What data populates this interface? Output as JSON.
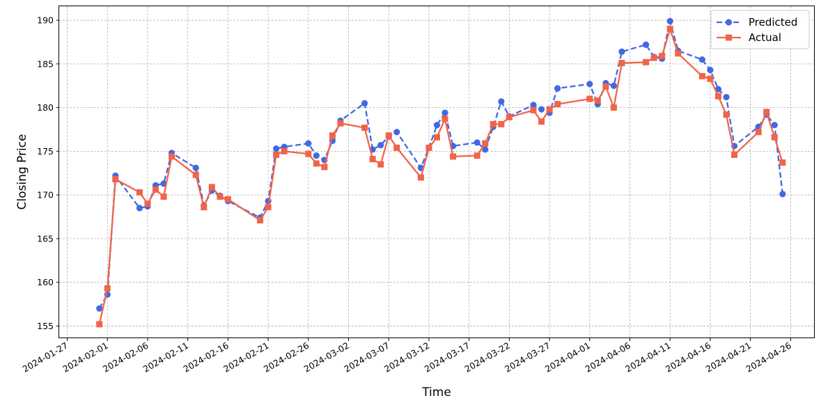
{
  "chart_data": {
    "type": "line",
    "xlabel": "Time",
    "ylabel": "Closing Price",
    "x_axis_type": "date",
    "xlim": [
      "2024-01-26",
      "2024-04-29"
    ],
    "ylim": [
      153.6,
      191.6
    ],
    "x_tick_labels": [
      "2024-01-27",
      "2024-02-01",
      "2024-02-06",
      "2024-02-11",
      "2024-02-16",
      "2024-02-21",
      "2024-02-26",
      "2024-03-02",
      "2024-03-07",
      "2024-03-12",
      "2024-03-17",
      "2024-03-22",
      "2024-03-27",
      "2024-04-01",
      "2024-04-06",
      "2024-04-11",
      "2024-04-16",
      "2024-04-21",
      "2024-04-26"
    ],
    "y_ticks": [
      155,
      160,
      165,
      170,
      175,
      180,
      185,
      190
    ],
    "grid": true,
    "legend_position": "top-right",
    "series": [
      {
        "name": "Predicted",
        "color": "#4169E1",
        "line_style": "dashed",
        "marker": "circle",
        "points": [
          [
            "2024-01-31",
            157.0
          ],
          [
            "2024-02-01",
            158.6
          ],
          [
            "2024-02-02",
            172.2
          ],
          [
            "2024-02-05",
            168.5
          ],
          [
            "2024-02-06",
            168.7
          ],
          [
            "2024-02-07",
            171.1
          ],
          [
            "2024-02-08",
            171.3
          ],
          [
            "2024-02-09",
            174.8
          ],
          [
            "2024-02-12",
            173.1
          ],
          [
            "2024-02-13",
            168.8
          ],
          [
            "2024-02-14",
            170.5
          ],
          [
            "2024-02-15",
            169.9
          ],
          [
            "2024-02-16",
            169.3
          ],
          [
            "2024-02-20",
            167.4
          ],
          [
            "2024-02-21",
            169.3
          ],
          [
            "2024-02-22",
            175.3
          ],
          [
            "2024-02-23",
            175.5
          ],
          [
            "2024-02-26",
            175.9
          ],
          [
            "2024-02-27",
            174.5
          ],
          [
            "2024-02-28",
            174.0
          ],
          [
            "2024-02-29",
            176.2
          ],
          [
            "2024-03-01",
            178.5
          ],
          [
            "2024-03-04",
            180.5
          ],
          [
            "2024-03-05",
            175.2
          ],
          [
            "2024-03-06",
            175.7
          ],
          [
            "2024-03-07",
            176.7
          ],
          [
            "2024-03-08",
            177.2
          ],
          [
            "2024-03-11",
            173.1
          ],
          [
            "2024-03-12",
            175.4
          ],
          [
            "2024-03-13",
            178.0
          ],
          [
            "2024-03-14",
            179.4
          ],
          [
            "2024-03-15",
            175.6
          ],
          [
            "2024-03-18",
            176.0
          ],
          [
            "2024-03-19",
            175.2
          ],
          [
            "2024-03-20",
            177.8
          ],
          [
            "2024-03-21",
            180.7
          ],
          [
            "2024-03-22",
            179.0
          ],
          [
            "2024-03-25",
            180.3
          ],
          [
            "2024-03-26",
            179.8
          ],
          [
            "2024-03-27",
            179.4
          ],
          [
            "2024-03-28",
            182.2
          ],
          [
            "2024-04-01",
            182.7
          ],
          [
            "2024-04-02",
            180.4
          ],
          [
            "2024-04-03",
            182.8
          ],
          [
            "2024-04-04",
            182.5
          ],
          [
            "2024-04-05",
            186.4
          ],
          [
            "2024-04-08",
            187.2
          ],
          [
            "2024-04-09",
            185.8
          ],
          [
            "2024-04-10",
            185.6
          ],
          [
            "2024-04-11",
            189.9
          ],
          [
            "2024-04-12",
            186.5
          ],
          [
            "2024-04-15",
            185.5
          ],
          [
            "2024-04-16",
            184.3
          ],
          [
            "2024-04-17",
            182.1
          ],
          [
            "2024-04-18",
            181.2
          ],
          [
            "2024-04-19",
            175.6
          ],
          [
            "2024-04-22",
            177.8
          ],
          [
            "2024-04-23",
            179.2
          ],
          [
            "2024-04-24",
            178.0
          ],
          [
            "2024-04-25",
            170.1
          ]
        ]
      },
      {
        "name": "Actual",
        "color": "#F0644A",
        "line_style": "solid",
        "marker": "square",
        "points": [
          [
            "2024-01-31",
            155.2
          ],
          [
            "2024-02-01",
            159.3
          ],
          [
            "2024-02-02",
            171.8
          ],
          [
            "2024-02-05",
            170.3
          ],
          [
            "2024-02-06",
            169.0
          ],
          [
            "2024-02-07",
            170.6
          ],
          [
            "2024-02-08",
            169.8
          ],
          [
            "2024-02-09",
            174.4
          ],
          [
            "2024-02-12",
            172.3
          ],
          [
            "2024-02-13",
            168.6
          ],
          [
            "2024-02-14",
            170.9
          ],
          [
            "2024-02-15",
            169.8
          ],
          [
            "2024-02-16",
            169.5
          ],
          [
            "2024-02-20",
            167.1
          ],
          [
            "2024-02-21",
            168.6
          ],
          [
            "2024-02-22",
            174.6
          ],
          [
            "2024-02-23",
            175.0
          ],
          [
            "2024-02-26",
            174.7
          ],
          [
            "2024-02-27",
            173.6
          ],
          [
            "2024-02-28",
            173.2
          ],
          [
            "2024-02-29",
            176.8
          ],
          [
            "2024-03-01",
            178.2
          ],
          [
            "2024-03-04",
            177.7
          ],
          [
            "2024-03-05",
            174.1
          ],
          [
            "2024-03-06",
            173.5
          ],
          [
            "2024-03-07",
            176.8
          ],
          [
            "2024-03-08",
            175.4
          ],
          [
            "2024-03-11",
            172.0
          ],
          [
            "2024-03-12",
            175.4
          ],
          [
            "2024-03-13",
            176.6
          ],
          [
            "2024-03-14",
            178.7
          ],
          [
            "2024-03-15",
            174.4
          ],
          [
            "2024-03-18",
            174.5
          ],
          [
            "2024-03-19",
            175.9
          ],
          [
            "2024-03-20",
            178.1
          ],
          [
            "2024-03-21",
            178.1
          ],
          [
            "2024-03-22",
            178.9
          ],
          [
            "2024-03-25",
            179.7
          ],
          [
            "2024-03-26",
            178.4
          ],
          [
            "2024-03-27",
            179.8
          ],
          [
            "2024-03-28",
            180.4
          ],
          [
            "2024-04-01",
            181.0
          ],
          [
            "2024-04-02",
            180.8
          ],
          [
            "2024-04-03",
            182.4
          ],
          [
            "2024-04-04",
            180.0
          ],
          [
            "2024-04-05",
            185.1
          ],
          [
            "2024-04-08",
            185.2
          ],
          [
            "2024-04-09",
            185.7
          ],
          [
            "2024-04-10",
            185.9
          ],
          [
            "2024-04-11",
            189.0
          ],
          [
            "2024-04-12",
            186.2
          ],
          [
            "2024-04-15",
            183.6
          ],
          [
            "2024-04-16",
            183.3
          ],
          [
            "2024-04-17",
            181.3
          ],
          [
            "2024-04-18",
            179.2
          ],
          [
            "2024-04-19",
            174.6
          ],
          [
            "2024-04-22",
            177.2
          ],
          [
            "2024-04-23",
            179.5
          ],
          [
            "2024-04-24",
            176.6
          ],
          [
            "2024-04-25",
            173.7
          ]
        ]
      }
    ]
  }
}
